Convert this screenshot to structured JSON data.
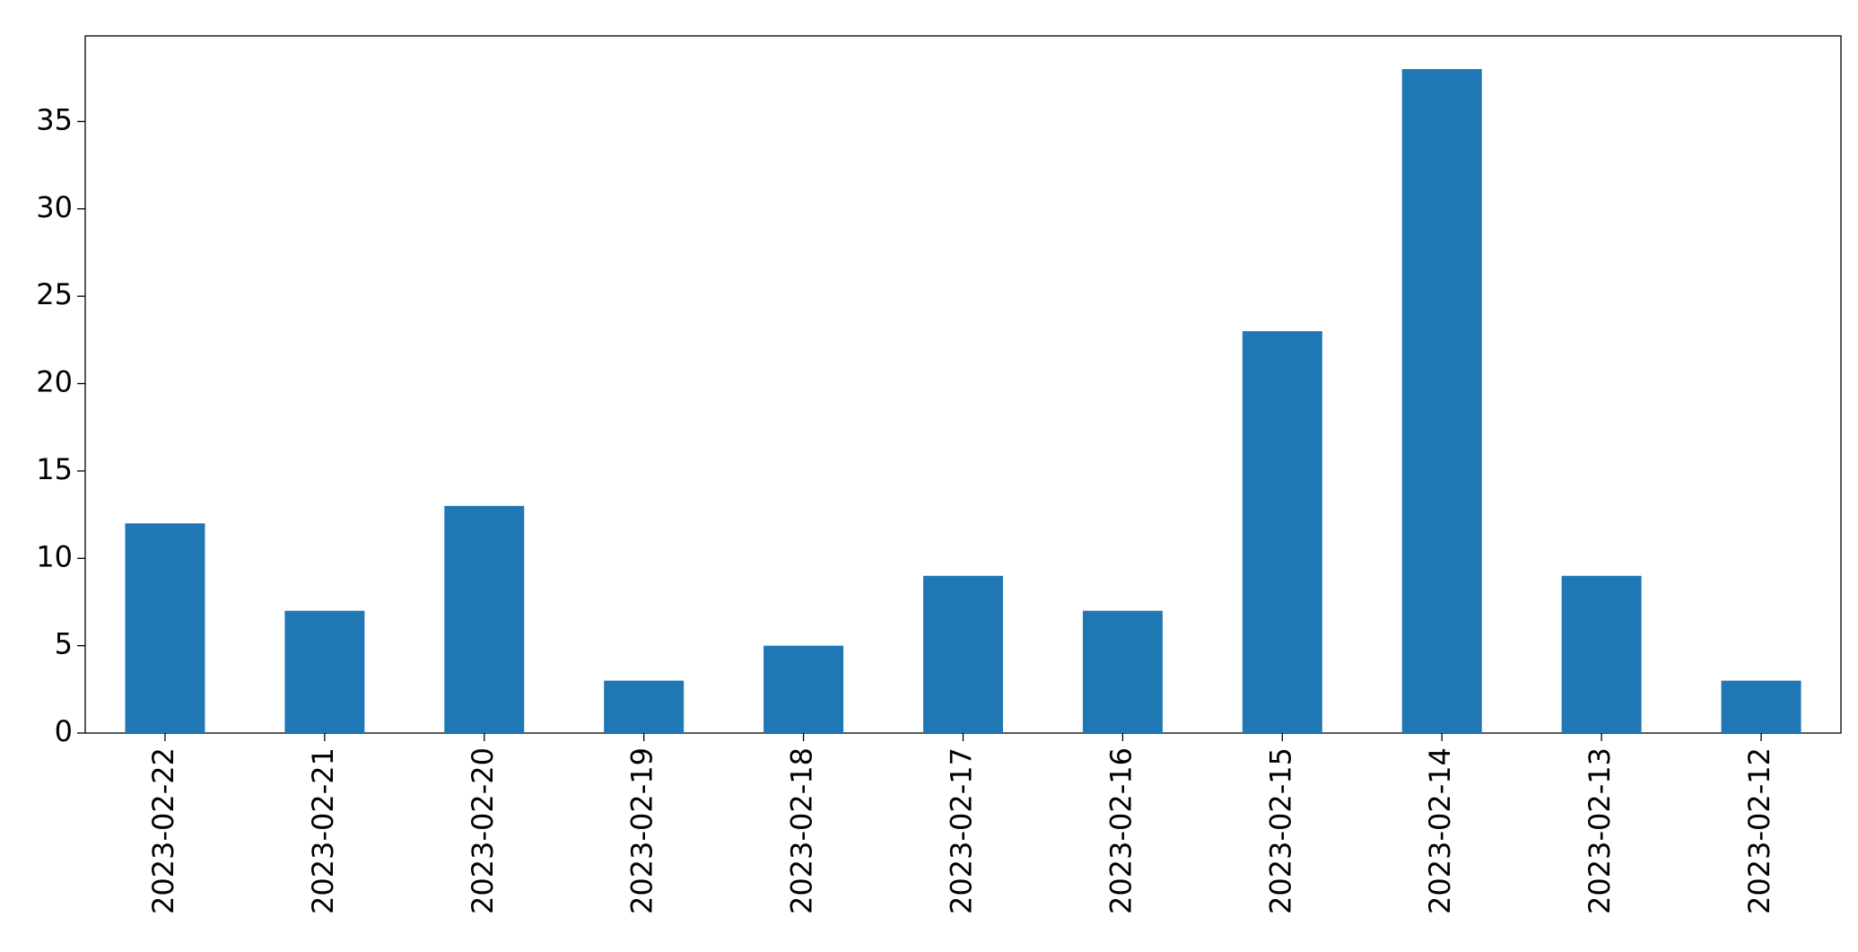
{
  "chart_data": {
    "type": "bar",
    "categories": [
      "2023-02-22",
      "2023-02-21",
      "2023-02-20",
      "2023-02-19",
      "2023-02-18",
      "2023-02-17",
      "2023-02-16",
      "2023-02-15",
      "2023-02-14",
      "2023-02-13",
      "2023-02-12"
    ],
    "values": [
      12,
      7,
      13,
      3,
      5,
      9,
      7,
      23,
      38,
      9,
      3
    ],
    "color": "#1f77b4",
    "ylim": [
      0,
      39.9
    ],
    "yticks": [
      0,
      5,
      10,
      15,
      20,
      25,
      30,
      35
    ],
    "grid": false
  }
}
